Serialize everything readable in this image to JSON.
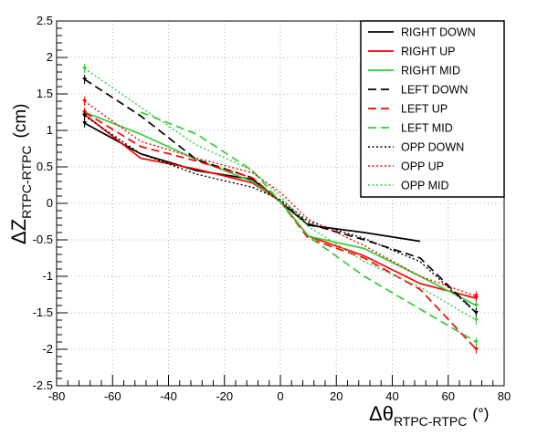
{
  "chart_data": {
    "type": "line",
    "xlabel": {
      "main": "Δθ",
      "sub": "RTPC-RTPC",
      "unit": "(°)"
    },
    "ylabel": {
      "main": "ΔZ",
      "sub": "RTPC-RTPC",
      "unit": "(cm)"
    },
    "xlim": [
      -80,
      80
    ],
    "ylim": [
      -2.5,
      2.5
    ],
    "xticks": [
      -80,
      -60,
      -40,
      -20,
      0,
      20,
      40,
      60,
      80
    ],
    "yticks": [
      -2.5,
      -2,
      -1.5,
      -1,
      -0.5,
      0,
      0.5,
      1,
      1.5,
      2,
      2.5
    ],
    "grid": true,
    "legend_position": "top-right",
    "series": [
      {
        "name": "RIGHT DOWN",
        "color": "#000000",
        "dash": "solid",
        "points": [
          [
            -70,
            1.1
          ],
          [
            -50,
            0.68
          ],
          [
            -30,
            0.45
          ],
          [
            -10,
            0.33
          ],
          [
            0,
            0.02
          ],
          [
            10,
            -0.3
          ],
          [
            30,
            -0.4
          ],
          [
            50,
            -0.52
          ]
        ]
      },
      {
        "name": "RIGHT UP",
        "color": "#ff0000",
        "dash": "solid",
        "points": [
          [
            -70,
            1.22
          ],
          [
            -50,
            0.62
          ],
          [
            -30,
            0.47
          ],
          [
            -10,
            0.28
          ],
          [
            0,
            0.03
          ],
          [
            10,
            -0.45
          ],
          [
            30,
            -0.72
          ],
          [
            50,
            -1.1
          ],
          [
            70,
            -1.3
          ]
        ]
      },
      {
        "name": "RIGHT MID",
        "color": "#33cc33",
        "dash": "solid",
        "points": [
          [
            -70,
            1.25
          ],
          [
            -50,
            0.95
          ],
          [
            -30,
            0.6
          ],
          [
            -10,
            0.3
          ],
          [
            0,
            0.02
          ],
          [
            10,
            -0.45
          ],
          [
            30,
            -0.62
          ],
          [
            50,
            -1.0
          ],
          [
            70,
            -1.4
          ]
        ]
      },
      {
        "name": "LEFT DOWN",
        "color": "#000000",
        "dash": "dashed",
        "points": [
          [
            -70,
            1.7
          ],
          [
            -50,
            1.2
          ],
          [
            -30,
            0.6
          ],
          [
            -10,
            0.35
          ],
          [
            0,
            0.02
          ],
          [
            10,
            -0.28
          ],
          [
            30,
            -0.5
          ],
          [
            50,
            -0.75
          ],
          [
            70,
            -1.5
          ]
        ]
      },
      {
        "name": "LEFT UP",
        "color": "#ff0000",
        "dash": "dashed",
        "points": [
          [
            -70,
            1.25
          ],
          [
            -50,
            0.78
          ],
          [
            -30,
            0.58
          ],
          [
            -10,
            0.35
          ],
          [
            0,
            0.02
          ],
          [
            10,
            -0.48
          ],
          [
            30,
            -0.75
          ],
          [
            50,
            -1.18
          ],
          [
            70,
            -2.0
          ]
        ]
      },
      {
        "name": "LEFT MID",
        "color": "#33cc33",
        "dash": "dashed",
        "points": [
          [
            -50,
            1.25
          ],
          [
            -30,
            0.95
          ],
          [
            -10,
            0.45
          ],
          [
            0,
            0.02
          ],
          [
            10,
            -0.45
          ],
          [
            30,
            -1.0
          ],
          [
            50,
            -1.45
          ],
          [
            70,
            -1.9
          ]
        ]
      },
      {
        "name": "OPP DOWN",
        "color": "#000000",
        "dash": "dotted",
        "points": [
          [
            -70,
            1.2
          ],
          [
            -50,
            0.68
          ],
          [
            -30,
            0.4
          ],
          [
            -10,
            0.22
          ],
          [
            0,
            0.05
          ],
          [
            10,
            -0.25
          ],
          [
            30,
            -0.48
          ],
          [
            50,
            -0.8
          ],
          [
            70,
            -1.5
          ]
        ]
      },
      {
        "name": "OPP UP",
        "color": "#ff0000",
        "dash": "dotted",
        "points": [
          [
            -70,
            1.4
          ],
          [
            -50,
            0.85
          ],
          [
            -30,
            0.62
          ],
          [
            -10,
            0.42
          ],
          [
            0,
            0.15
          ],
          [
            10,
            -0.22
          ],
          [
            30,
            -0.58
          ],
          [
            50,
            -1.0
          ],
          [
            70,
            -1.27
          ]
        ]
      },
      {
        "name": "OPP MID",
        "color": "#33cc33",
        "dash": "dotted",
        "points": [
          [
            -70,
            1.85
          ],
          [
            -50,
            1.32
          ],
          [
            -30,
            0.8
          ],
          [
            -10,
            0.45
          ],
          [
            0,
            0.1
          ],
          [
            10,
            -0.32
          ],
          [
            30,
            -0.8
          ],
          [
            50,
            -1.15
          ],
          [
            70,
            -1.6
          ]
        ]
      }
    ]
  }
}
